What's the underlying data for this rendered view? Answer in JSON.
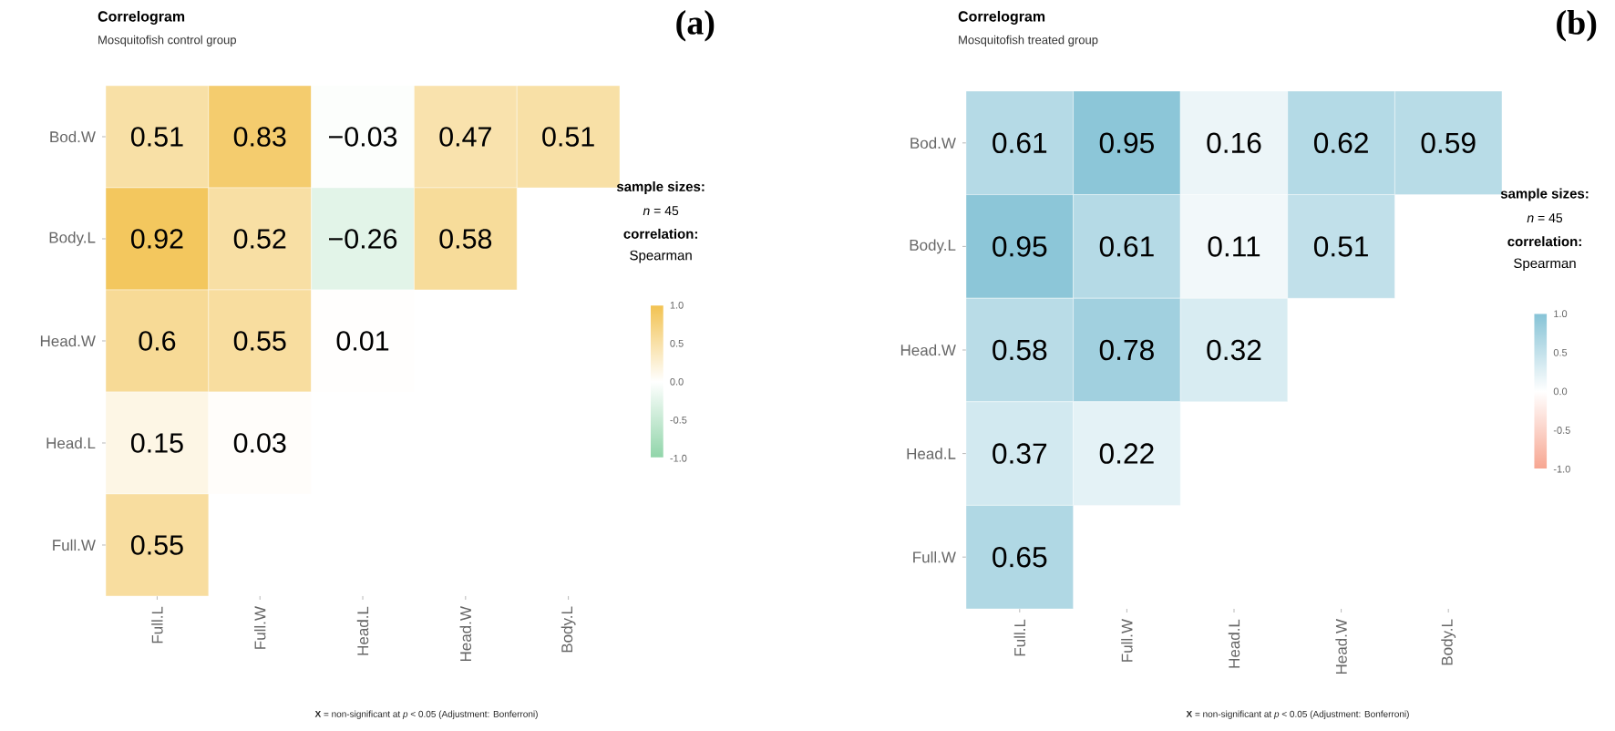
{
  "chart_data": [
    {
      "type": "heatmap",
      "title": "Correlogram",
      "subtitle": "Mosquitofish control group",
      "categories": [
        "Full.L",
        "Full.W",
        "Head.L",
        "Head.W",
        "Body.L"
      ],
      "y_categories": [
        "Bod.W",
        "Body.L",
        "Head.W",
        "Head.L",
        "Full.W"
      ],
      "cells": [
        [
          0.51,
          0.83,
          -0.03,
          0.47,
          0.51
        ],
        [
          0.92,
          0.52,
          -0.26,
          0.58,
          null
        ],
        [
          0.6,
          0.55,
          0.01,
          null,
          null
        ],
        [
          0.15,
          0.03,
          null,
          null,
          null
        ],
        [
          0.55,
          null,
          null,
          null,
          null
        ]
      ],
      "data_labels": true,
      "clim": [
        -1.0,
        1.0
      ],
      "cticks": [
        {
          "value": -1,
          "label": "-1.0"
        },
        {
          "value": -0.5,
          "label": "-0.5"
        },
        {
          "value": 0,
          "label": "0.0"
        },
        {
          "value": 0.5,
          "label": "0.5"
        },
        {
          "value": 1,
          "label": "1.0"
        }
      ],
      "colors": [
        "#8fd4a8",
        "#ffffff",
        "#f2c250"
      ],
      "legend_title": "sample sizes:",
      "clabel": "correlation:",
      "annotations": [
        "(a)",
        "*n* = 45",
        "Spearman",
        "**X** = non-significant at *p* < 0.05 (Adjustment: Bonferroni)"
      ]
    },
    {
      "type": "heatmap",
      "title": "Correlogram",
      "subtitle": "Mosquitofish treated group",
      "categories": [
        "Full.L",
        "Full.W",
        "Head.L",
        "Head.W",
        "Body.L"
      ],
      "y_categories": [
        "Bod.W",
        "Body.L",
        "Head.W",
        "Head.L",
        "Full.W"
      ],
      "cells": [
        [
          0.61,
          0.95,
          0.16,
          0.62,
          0.59
        ],
        [
          0.95,
          0.61,
          0.11,
          0.51,
          null
        ],
        [
          0.58,
          0.78,
          0.32,
          null,
          null
        ],
        [
          0.37,
          0.22,
          null,
          null,
          null
        ],
        [
          0.65,
          null,
          null,
          null,
          null
        ]
      ],
      "data_labels": true,
      "clim": [
        -1.0,
        1.0
      ],
      "cticks": [
        {
          "value": -1,
          "label": "-1.0"
        },
        {
          "value": -0.5,
          "label": "-0.5"
        },
        {
          "value": 0,
          "label": "0.0"
        },
        {
          "value": 0.5,
          "label": "0.5"
        },
        {
          "value": 1,
          "label": "1.0"
        }
      ],
      "colors": [
        "#f7a590",
        "#ffffff",
        "#86c3d6"
      ],
      "legend_title": "sample sizes:",
      "clabel": "correlation:",
      "annotations": [
        "(b)",
        "*n* = 45",
        "Spearman",
        "**X** = non-significant at *p* < 0.05 (Adjustment: Bonferroni)"
      ]
    }
  ]
}
